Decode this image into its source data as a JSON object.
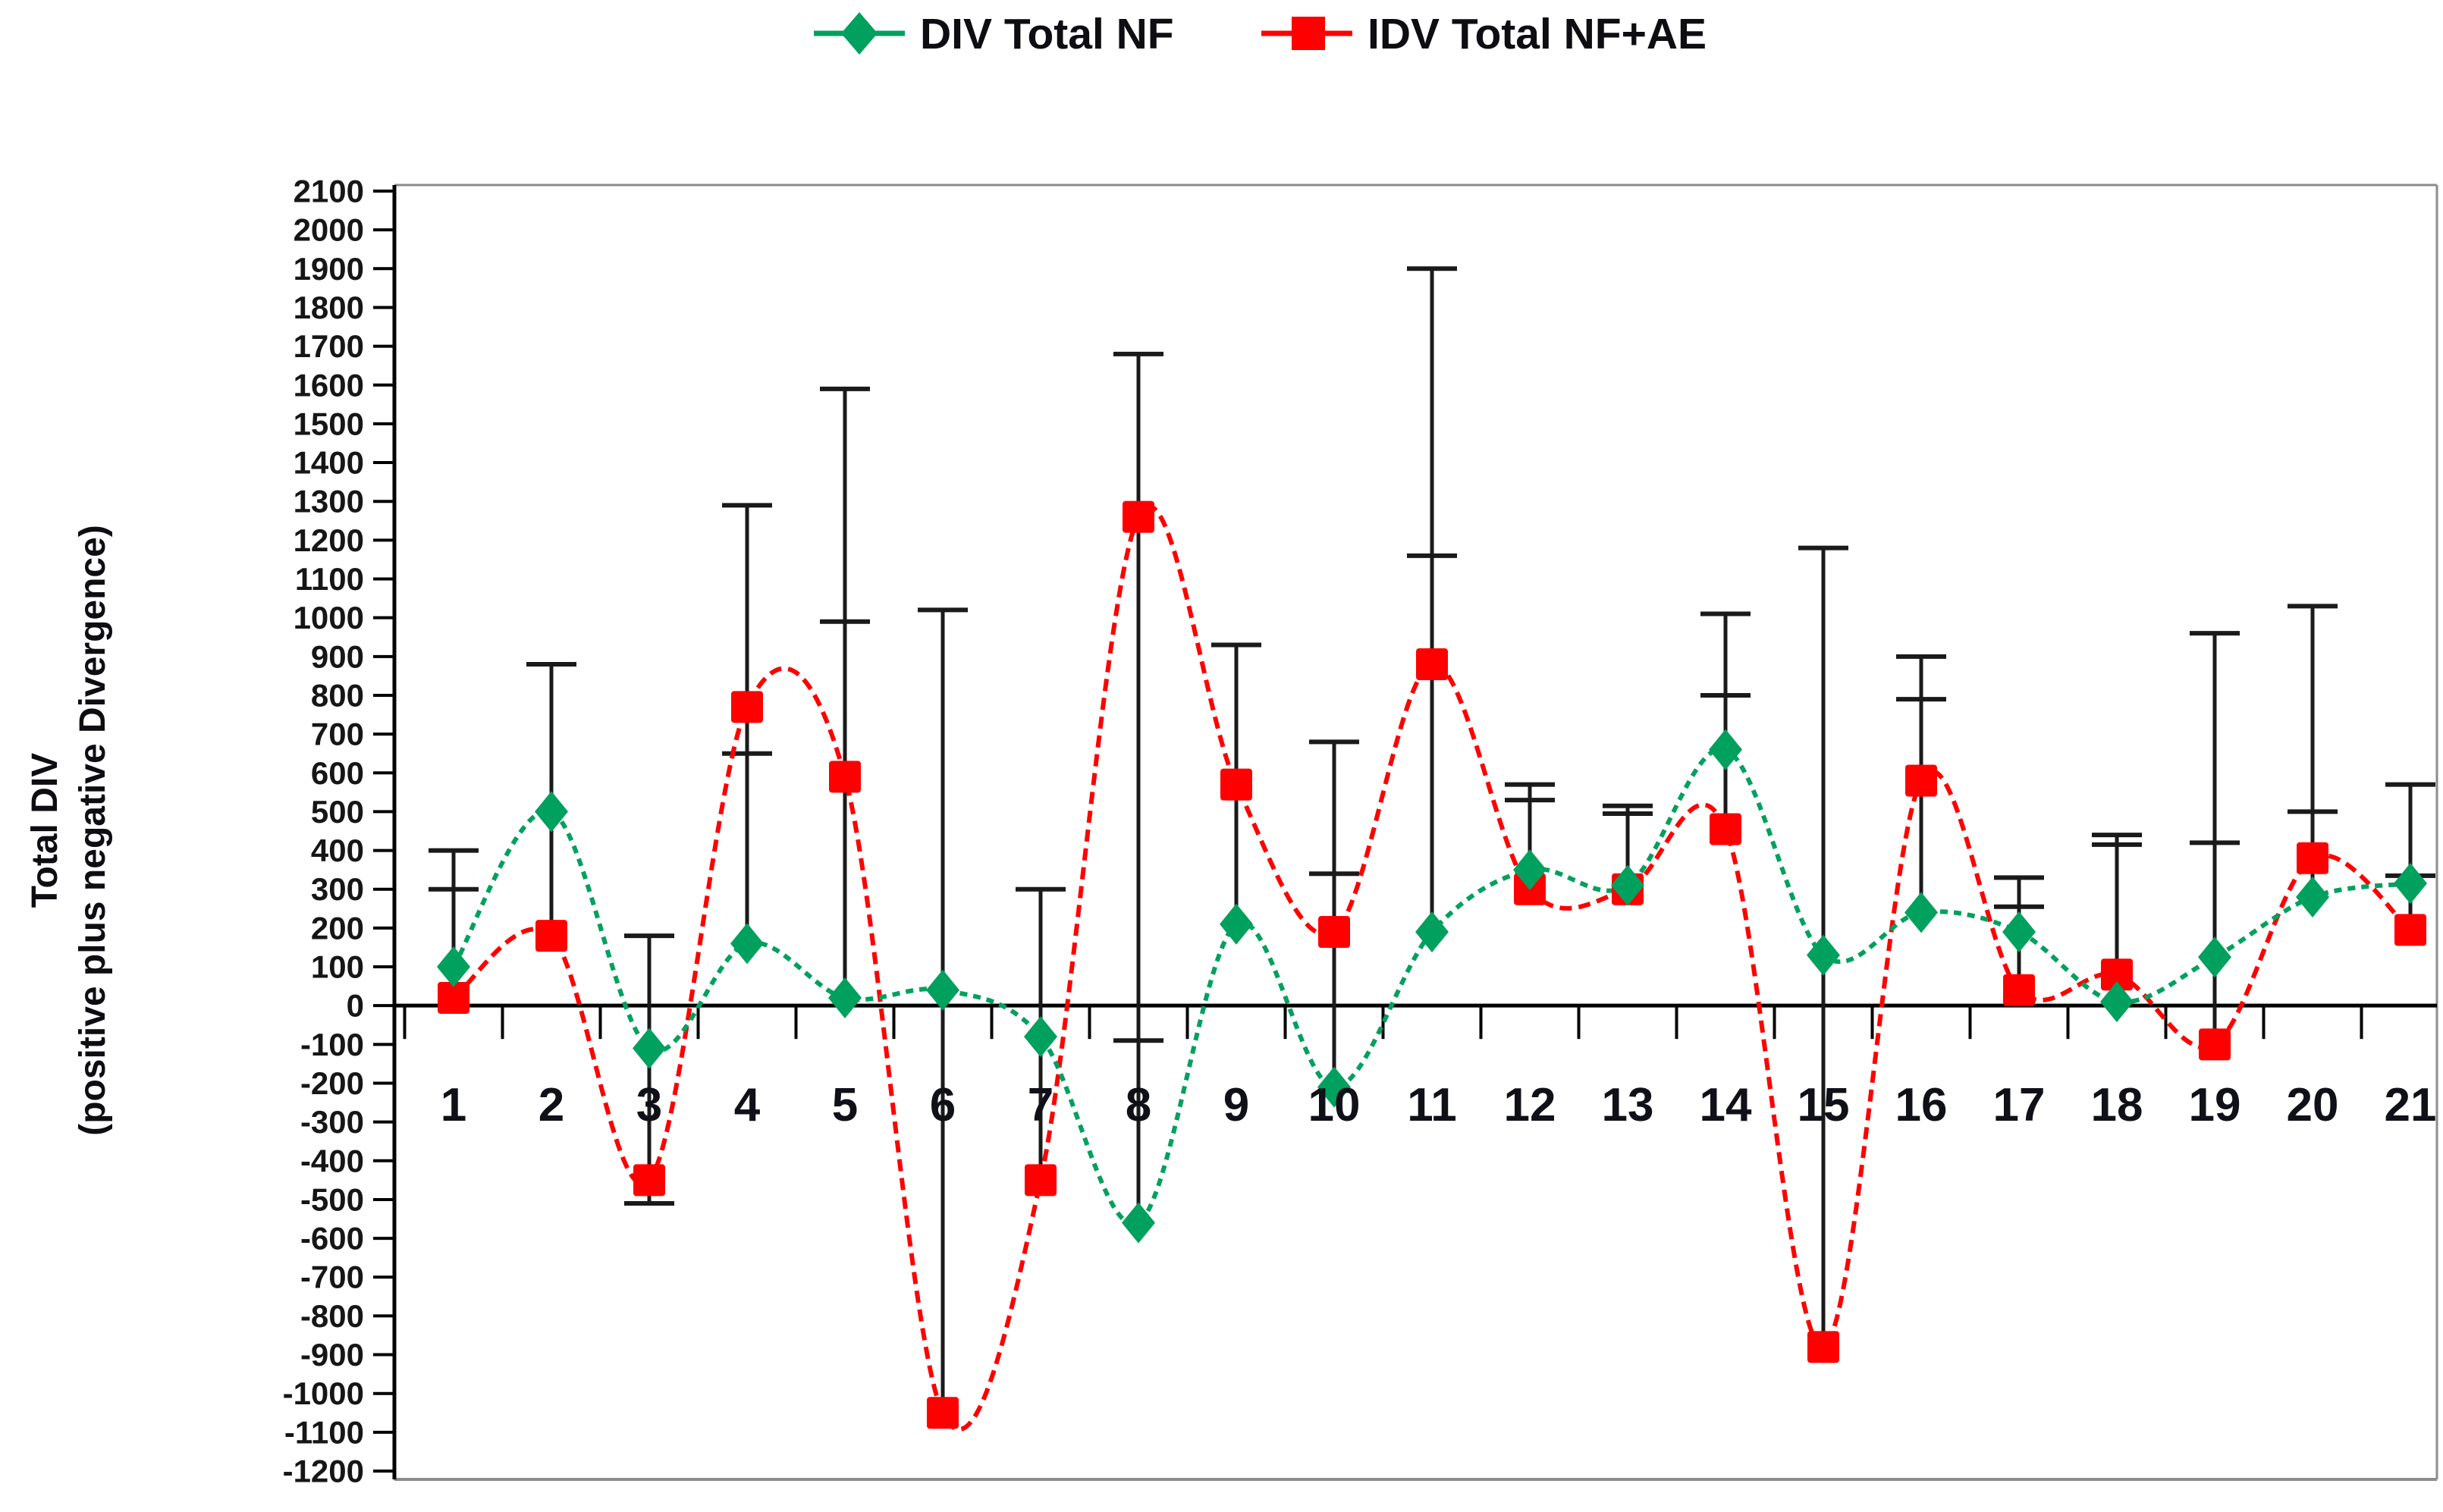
{
  "figure": {
    "legend": [
      {
        "label": "DIV Total NF",
        "series": "green",
        "marker": "diamond"
      },
      {
        "label": "IDV Total NF+AE",
        "series": "red",
        "marker": "square"
      }
    ],
    "y_axis_title_line1": "Total DIV",
    "y_axis_title_line2": "(positive plus negative Divergence)"
  },
  "chart_data": {
    "type": "line",
    "title": "",
    "xlabel": "",
    "ylabel": "Total DIV (positive plus negative Divergence)",
    "grid": false,
    "legend_position": "top-center",
    "ylim": [
      -1200,
      2100
    ],
    "ytick_step": 100,
    "categories": [
      1,
      2,
      3,
      4,
      5,
      6,
      7,
      8,
      9,
      10,
      11,
      12,
      13,
      14,
      15,
      16,
      17,
      18,
      19,
      20,
      21
    ],
    "series": [
      {
        "name": "DIV Total NF",
        "color": "#00A05E",
        "marker": "diamond",
        "line_style": "dashed",
        "values": [
          100,
          500,
          -110,
          160,
          20,
          40,
          -80,
          -560,
          210,
          -210,
          190,
          350,
          310,
          660,
          130,
          240,
          190,
          10,
          125,
          280,
          315
        ]
      },
      {
        "name": "IDV Total NF+AE",
        "color": "#FF0000",
        "marker": "square",
        "line_style": "dashed",
        "values": [
          20,
          180,
          -450,
          770,
          590,
          -1050,
          -450,
          1260,
          570,
          190,
          880,
          300,
          300,
          455,
          -880,
          580,
          40,
          80,
          -100,
          380,
          195
        ]
      }
    ],
    "error_bars": [
      {
        "category": 1,
        "lo": 20,
        "hi": 400,
        "caps": [
          400,
          300
        ]
      },
      {
        "category": 2,
        "lo": 180,
        "hi": 880,
        "caps": [
          880
        ]
      },
      {
        "category": 3,
        "lo": -510,
        "hi": 180,
        "caps": [
          180,
          -510
        ]
      },
      {
        "category": 4,
        "lo": 160,
        "hi": 1290,
        "caps": [
          1290,
          650
        ]
      },
      {
        "category": 5,
        "lo": 20,
        "hi": 1590,
        "caps": [
          1590,
          990
        ]
      },
      {
        "category": 6,
        "lo": -1050,
        "hi": 1020,
        "caps": [
          1020
        ]
      },
      {
        "category": 7,
        "lo": -455,
        "hi": 300,
        "caps": [
          300
        ]
      },
      {
        "category": 8,
        "lo": -560,
        "hi": 1680,
        "caps": [
          1680,
          -90
        ]
      },
      {
        "category": 9,
        "lo": 210,
        "hi": 930,
        "caps": [
          930
        ]
      },
      {
        "category": 10,
        "lo": -210,
        "hi": 680,
        "caps": [
          680,
          340
        ]
      },
      {
        "category": 11,
        "lo": 190,
        "hi": 1900,
        "caps": [
          1900,
          1160
        ]
      },
      {
        "category": 12,
        "lo": 300,
        "hi": 570,
        "caps": [
          570,
          530
        ]
      },
      {
        "category": 13,
        "lo": 300,
        "hi": 515,
        "caps": [
          515,
          495
        ]
      },
      {
        "category": 14,
        "lo": 455,
        "hi": 1010,
        "caps": [
          1010,
          800
        ]
      },
      {
        "category": 15,
        "lo": -880,
        "hi": 1180,
        "caps": [
          1180
        ]
      },
      {
        "category": 16,
        "lo": 240,
        "hi": 900,
        "caps": [
          900,
          790
        ]
      },
      {
        "category": 17,
        "lo": 40,
        "hi": 330,
        "caps": [
          330,
          255
        ]
      },
      {
        "category": 18,
        "lo": 10,
        "hi": 440,
        "caps": [
          440,
          415
        ]
      },
      {
        "category": 19,
        "lo": -100,
        "hi": 960,
        "caps": [
          960,
          420
        ]
      },
      {
        "category": 20,
        "lo": 280,
        "hi": 1030,
        "caps": [
          1030,
          500
        ]
      },
      {
        "category": 21,
        "lo": 195,
        "hi": 570,
        "caps": [
          570,
          335
        ]
      }
    ],
    "colors": {
      "green_series": "#00A05E",
      "red_series": "#FF0000",
      "error_bar": "#1a1a1a",
      "axis": "#000000",
      "frame": "#8c8c8c"
    }
  }
}
